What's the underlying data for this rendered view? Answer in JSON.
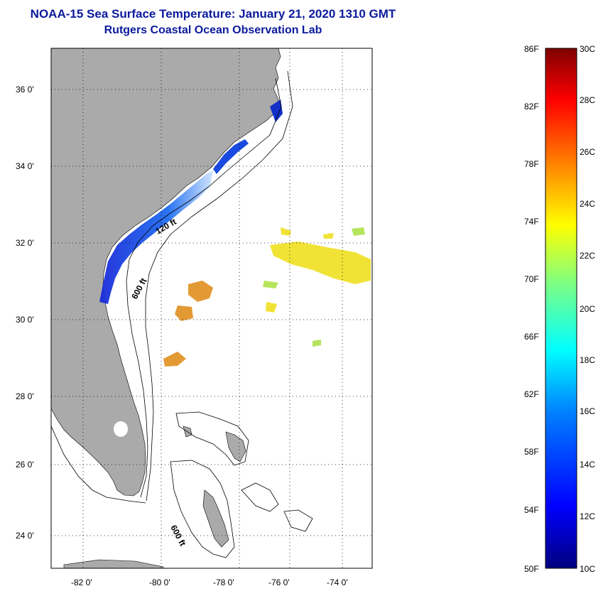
{
  "title_line1": "NOAA-15 Sea Surface Temperature:  January 21, 2020 1310 GMT",
  "title_line2": "Rutgers Coastal Ocean Observation Lab",
  "lat_labels": [
    "36 0'",
    "34 0'",
    "32 0'",
    "30 0'",
    "28 0'",
    "26 0'",
    "24 0'"
  ],
  "lon_labels": [
    "-82 0'",
    "-80 0'",
    "-78 0'",
    "-76 0'",
    "-74 0'"
  ],
  "contour_labels": [
    "120 ft",
    "600 ft",
    "600 ft"
  ],
  "colorbar": {
    "f_labels": [
      "86F",
      "82F",
      "78F",
      "74F",
      "70F",
      "66F",
      "62F",
      "58F",
      "54F",
      "50F"
    ],
    "c_labels": [
      "30C",
      "28C",
      "26C",
      "24C",
      "22C",
      "20C",
      "18C",
      "16C",
      "14C",
      "12C",
      "10C"
    ]
  },
  "colors": {
    "land": "#aaaaaa",
    "title": "#0b1a9c",
    "cold": "#0a2ad8",
    "warm": "#f0e020",
    "orange": "#e09020"
  }
}
